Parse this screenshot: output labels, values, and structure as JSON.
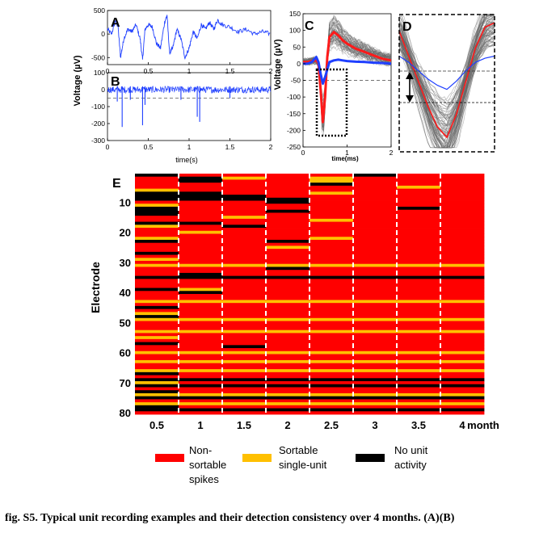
{
  "colors": {
    "nonsortable": "#ff0000",
    "sortable": "#ffc000",
    "none": "#000000",
    "trace_blue": "#1f3fff",
    "mean_red": "#ff1a1a",
    "waveform_gray": "#666666"
  },
  "panel_A": {
    "label": "A",
    "chart_data": {
      "type": "line",
      "title": "",
      "x_ticks": [
        "0",
        "0.5",
        "1",
        "1.5",
        "2"
      ],
      "y_ticks": [
        "500",
        "0",
        "-500"
      ],
      "xlim": [
        0,
        2
      ],
      "ylim": [
        -650,
        500
      ],
      "series": [
        {
          "name": "raw voltage",
          "x": [
            0,
            0.05,
            0.1,
            0.13,
            0.16,
            0.2,
            0.25,
            0.3,
            0.35,
            0.4,
            0.43,
            0.46,
            0.5,
            0.55,
            0.6,
            0.65,
            0.7,
            0.73,
            0.76,
            0.8,
            0.85,
            0.9,
            0.95,
            1.0,
            1.05,
            1.1,
            1.15,
            1.2,
            1.25,
            1.3,
            1.35,
            1.4,
            1.5,
            1.6,
            1.7,
            1.8,
            1.9,
            2.0
          ],
          "y": [
            100,
            0,
            300,
            150,
            -500,
            -100,
            100,
            50,
            200,
            -100,
            -550,
            100,
            200,
            150,
            -200,
            -300,
            250,
            400,
            -400,
            -300,
            100,
            -100,
            -500,
            -300,
            50,
            -100,
            200,
            100,
            250,
            100,
            300,
            200,
            150,
            50,
            100,
            0,
            50,
            0
          ]
        }
      ]
    }
  },
  "panel_B": {
    "label": "B",
    "xlabel": "time(s)",
    "chart_data": {
      "type": "line",
      "x_ticks": [
        "0",
        "0.5",
        "1",
        "1.5",
        "2"
      ],
      "y_ticks": [
        "100",
        "0",
        "-100",
        "-200",
        "-300"
      ],
      "xlim": [
        0,
        2
      ],
      "ylim": [
        -300,
        100
      ],
      "threshold": -50,
      "spikes": [
        {
          "x": 0.12,
          "y": -70
        },
        {
          "x": 0.18,
          "y": -220
        },
        {
          "x": 0.28,
          "y": -60
        },
        {
          "x": 0.43,
          "y": -210
        },
        {
          "x": 0.46,
          "y": -90
        },
        {
          "x": 0.9,
          "y": -60
        },
        {
          "x": 1.1,
          "y": -160
        },
        {
          "x": 1.13,
          "y": -190
        },
        {
          "x": 1.5,
          "y": -50
        }
      ]
    }
  },
  "shared_ylabel": "Voltage (µV)",
  "panel_C": {
    "label": "C",
    "ylabel": "Voltage (µV)",
    "xlabel": "time(ms)",
    "chart_data": {
      "type": "line",
      "x_ticks": [
        "0",
        "1",
        "2"
      ],
      "y_ticks": [
        "150",
        "100",
        "50",
        "0",
        "-50",
        "-100",
        "-150",
        "-200",
        "-250"
      ],
      "xlim": [
        0,
        2
      ],
      "ylim": [
        -250,
        150
      ],
      "threshold": -50,
      "series": [
        {
          "name": "mean red",
          "x": [
            0,
            0.1,
            0.2,
            0.3,
            0.35,
            0.4,
            0.45,
            0.5,
            0.55,
            0.6,
            0.7,
            0.8,
            0.9,
            1.0,
            1.2,
            1.4,
            1.6,
            1.8,
            2.0
          ],
          "y": [
            5,
            5,
            8,
            10,
            0,
            -80,
            -175,
            -100,
            20,
            80,
            95,
            85,
            70,
            60,
            45,
            35,
            25,
            15,
            10
          ]
        },
        {
          "name": "mean blue",
          "x": [
            0,
            0.1,
            0.2,
            0.3,
            0.35,
            0.4,
            0.45,
            0.5,
            0.6,
            0.7,
            0.8,
            0.9,
            1.0,
            1.2,
            1.4,
            1.6,
            1.8,
            2.0
          ],
          "y": [
            0,
            0,
            5,
            20,
            5,
            -30,
            -60,
            -40,
            5,
            10,
            12,
            10,
            8,
            6,
            5,
            3,
            2,
            0
          ]
        }
      ]
    }
  },
  "panel_D": {
    "label": "D",
    "chart_data": {
      "type": "line",
      "series": [
        {
          "name": "mean red",
          "x": [
            0,
            0.1,
            0.2,
            0.3,
            0.4,
            0.5,
            0.6,
            0.7,
            0.8,
            0.9,
            1.0
          ],
          "y": [
            80,
            20,
            -40,
            -100,
            -150,
            -175,
            -120,
            -40,
            40,
            90,
            100
          ]
        },
        {
          "name": "mean blue",
          "x": [
            0,
            0.1,
            0.2,
            0.3,
            0.4,
            0.5,
            0.6,
            0.7,
            0.8,
            0.9,
            1.0
          ],
          "y": [
            20,
            5,
            -15,
            -35,
            -50,
            -60,
            -40,
            -15,
            5,
            15,
            20
          ]
        }
      ]
    }
  },
  "panel_E": {
    "label": "E",
    "ylabel": "Electrode",
    "x_unit": "month",
    "chart_data": {
      "type": "heatmap",
      "categories": [
        "0.5",
        "1",
        "1.5",
        "2",
        "2.5",
        "3",
        "3.5",
        "4"
      ],
      "y_ticks": [
        "10",
        "20",
        "30",
        "40",
        "50",
        "60",
        "70",
        "80"
      ],
      "n_electrodes": 80,
      "legend_key": {
        "R": "Non-sortable spikes",
        "Y": "Sortable single-unit",
        "K": "No unit activity"
      },
      "rows": [
        "KRRRRKRR",
        "RKYRYRRR",
        "RKRRYRRR",
        "RRRRKRRR",
        "RRRRRRYR",
        "YRRRRRRR",
        "KKRRYRRR",
        "KKKRRRRR",
        "KKKKRRRR",
        "RRRKRRRR",
        "YRRRRRRR",
        "KRRRRRKR",
        "KRRKRRRR",
        "KRRRRRRR",
        "RRYRRRRR",
        "RRRRYRRR",
        "KKRRRRRR",
        "YRKRRRRR",
        "RRRRRRRR",
        "RYRRRRRR",
        "RRRRRRRR",
        "YRRRYRRR",
        "KRRKRRRR",
        "RRRRRRRR",
        "RRRYRRRR",
        "RRRRRRRR",
        "KRRRRRRR",
        "RRRRRRRR",
        "YRRRRRRR",
        "RRRRRRRR",
        "YYYYYYYY",
        "RRRKRRRR",
        "RRRRRRRR",
        "RKRRRRRR",
        "KKKKKKKK",
        "RRRRRRRR",
        "RRRRRRRR",
        "RRRRRRRR",
        "KYRRRRRR",
        "RKRRRRRR",
        "RRRRRRRR",
        "RRRRRRRR",
        "YYYYYYYY",
        "RRRRRRRR",
        "KRRRRRRR",
        "RRRRRRRR",
        "YRRRRRRR",
        "KRRRRRRR",
        "YYYYYYYY",
        "RRRRRRRR",
        "RRRRRRRR",
        "RRRRRRRR",
        "YYYYYYYY",
        "RRRRRRRR",
        "YRRRRRRR",
        "RRRRRRRR",
        "KRRRRRRR",
        "RRKRRRRR",
        "RRRRRRRR",
        "YYYYYYYY",
        "RRRRRRRR",
        "RRRRRRRR",
        "YYYYYYYY",
        "RRRRRRRR",
        "RRRRRRRR",
        "YYYYYYYY",
        "KRRRRRRR",
        "RRRRRRRR",
        "KKKKKKKK",
        "YRRRRRRR",
        "KKKKKKKK",
        "RRRRRRRR",
        "KRRRRRRR",
        "YYYYYYYY",
        "KKKKKKKK",
        "RRRRRRRR",
        "YYYYYYYY",
        "KRRRRRRR",
        "KKKKKKKK",
        "RRRRRRRR"
      ]
    }
  },
  "legend": {
    "items": [
      {
        "key": "R",
        "label_lines": [
          "Non-",
          "sortable",
          "spikes"
        ]
      },
      {
        "key": "Y",
        "label_lines": [
          "Sortable",
          "single-unit"
        ]
      },
      {
        "key": "K",
        "label_lines": [
          "No unit",
          "activity"
        ]
      }
    ]
  },
  "caption": {
    "text": "fig. S5. Typical unit recording examples and their detection consistency over 4 months. (A)(B)"
  }
}
